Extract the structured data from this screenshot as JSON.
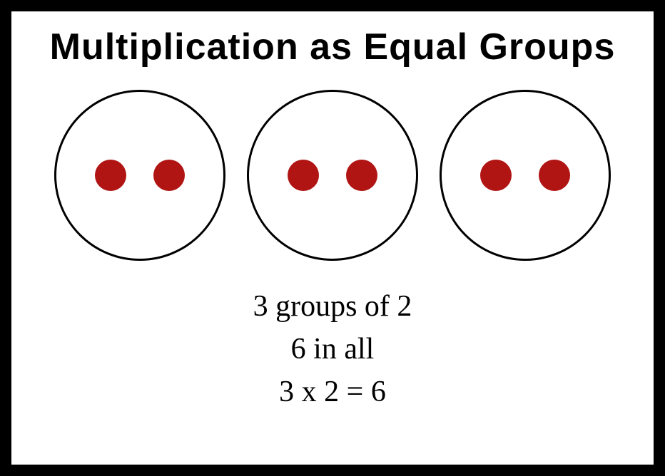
{
  "title": "Multiplication as Equal Groups",
  "diagram": {
    "type": "equal-groups",
    "group_count": 3,
    "items_per_group": 2,
    "circle_border_color": "#000000",
    "circle_border_width": 3,
    "circle_diameter": 240,
    "dot_color": "#b01514",
    "dot_diameter": 44,
    "background_color": "#ffffff",
    "outer_background": "#000000"
  },
  "captions": {
    "line1": "3 groups of 2",
    "line2": "6 in all",
    "line3": "3 x 2 = 6"
  },
  "typography": {
    "title_fontsize": 52,
    "title_weight": 900,
    "title_color": "#000000",
    "caption_fontsize": 42,
    "caption_color": "#000000"
  }
}
